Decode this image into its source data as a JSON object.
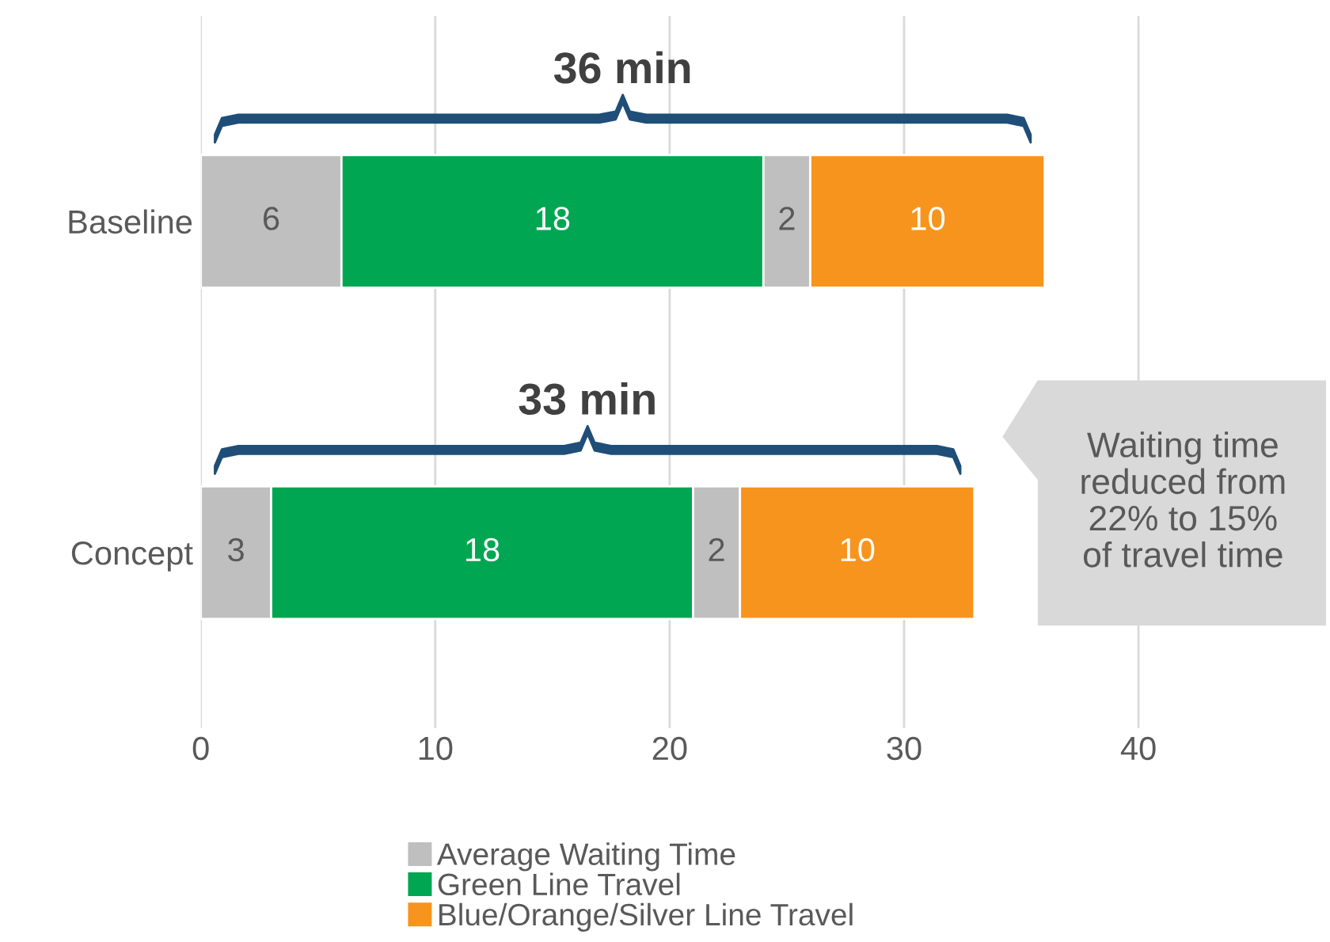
{
  "chart_data": {
    "type": "bar",
    "orientation": "horizontal",
    "stacked": true,
    "categories": [
      "Baseline",
      "Concept"
    ],
    "series": [
      {
        "name": "Average Waiting Time",
        "color": "#bfbfbf",
        "values": [
          6,
          3
        ]
      },
      {
        "name": "Green Line Travel",
        "color": "#00a651",
        "values": [
          18,
          18
        ]
      },
      {
        "color": "#bfbfbf",
        "values": [
          2,
          2
        ]
      },
      {
        "name": "Blue/Orange/Silver Line Travel",
        "color": "#f7941d",
        "values": [
          10,
          10
        ]
      }
    ],
    "xlim": [
      0,
      48
    ],
    "xticks": [
      0,
      10,
      20,
      30,
      40
    ],
    "grid": "x",
    "legend": "bottom",
    "data_labels": true,
    "annotations": [
      "36 min",
      "33 min",
      "Waiting time\nreduced from\n22% to 15%\nof travel time"
    ]
  }
}
